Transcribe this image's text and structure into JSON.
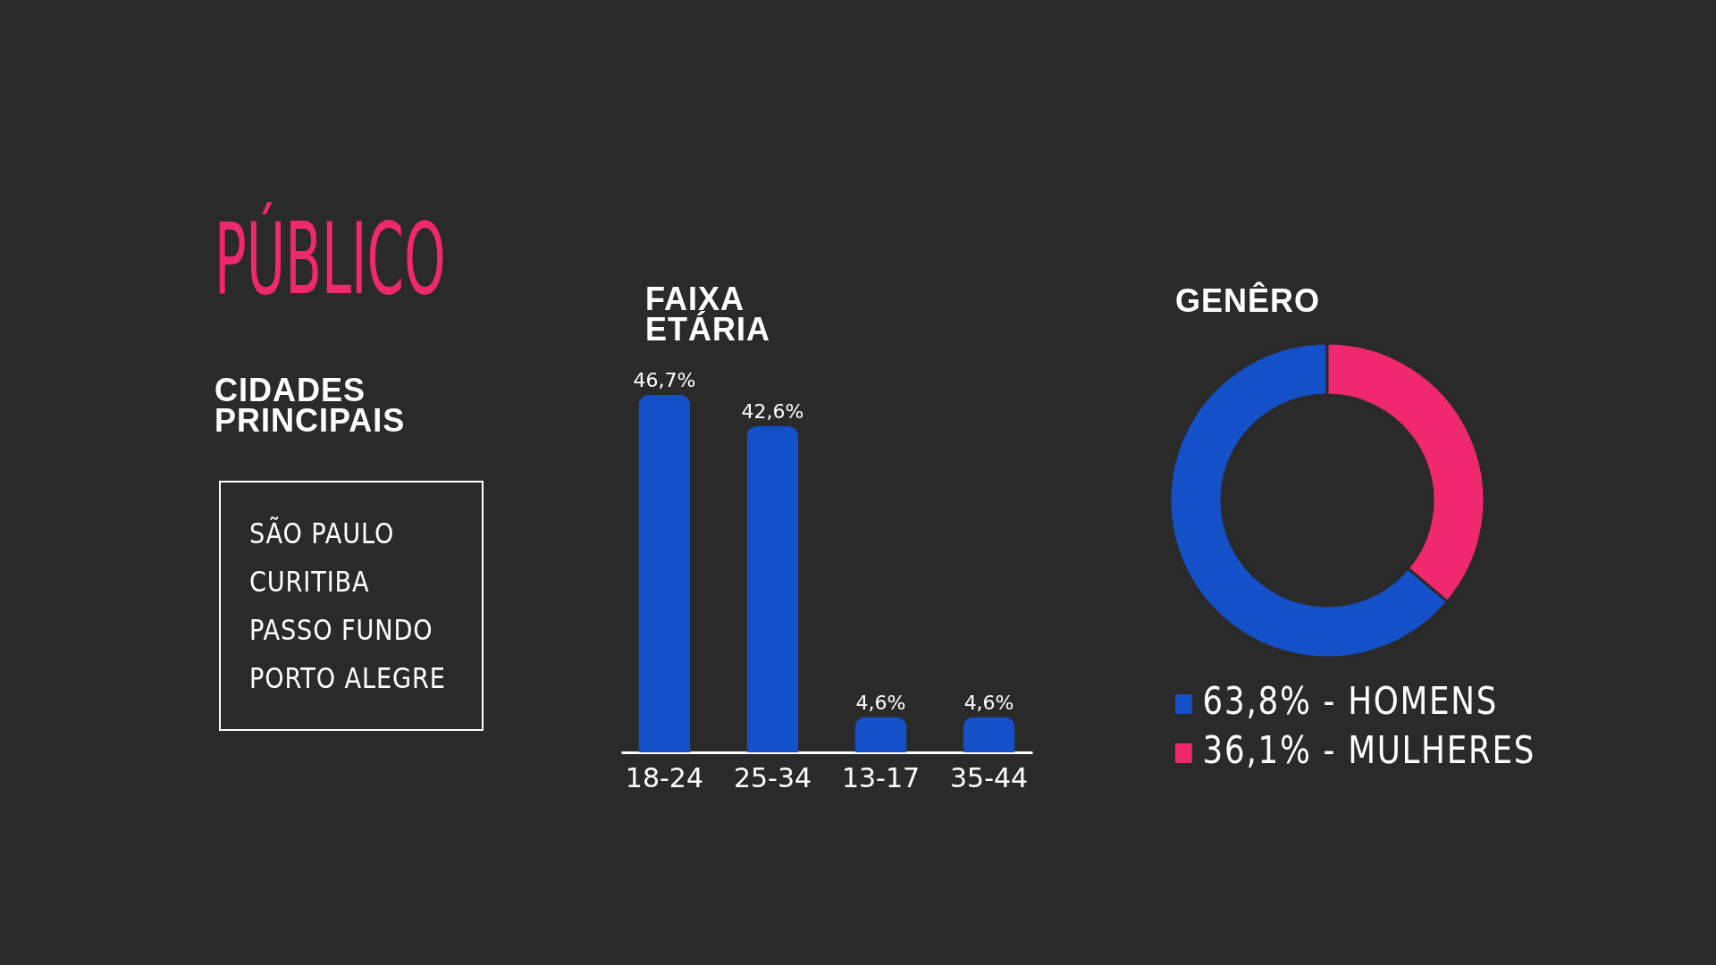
{
  "chart_data": [
    {
      "type": "other",
      "title": "PÚBLICO",
      "subtitle": "CIDADES PRINCIPAIS",
      "annotations": [
        "SÃO PAULO",
        "CURITIBA",
        "PASSO FUNDO",
        "PORTO ALEGRE"
      ]
    },
    {
      "type": "bar",
      "title": "FAIXA ETÁRIA",
      "categories": [
        "18-24",
        "25-34",
        "13-17",
        "35-44"
      ],
      "values": [
        46.7,
        42.6,
        4.6,
        4.6
      ],
      "value_labels": [
        "46,7%",
        "42,6%",
        "4,6%",
        "4,6%"
      ],
      "color": "#1450c8"
    },
    {
      "type": "donut",
      "title": "GENÊRO",
      "categories": [
        "HOMENS",
        "MULHERES"
      ],
      "values": [
        63.8,
        36.1
      ],
      "value_labels": [
        "63,8%",
        "36,1%"
      ],
      "colors": [
        "#1450c8",
        "#f0286e"
      ],
      "legend": "bottom"
    }
  ]
}
